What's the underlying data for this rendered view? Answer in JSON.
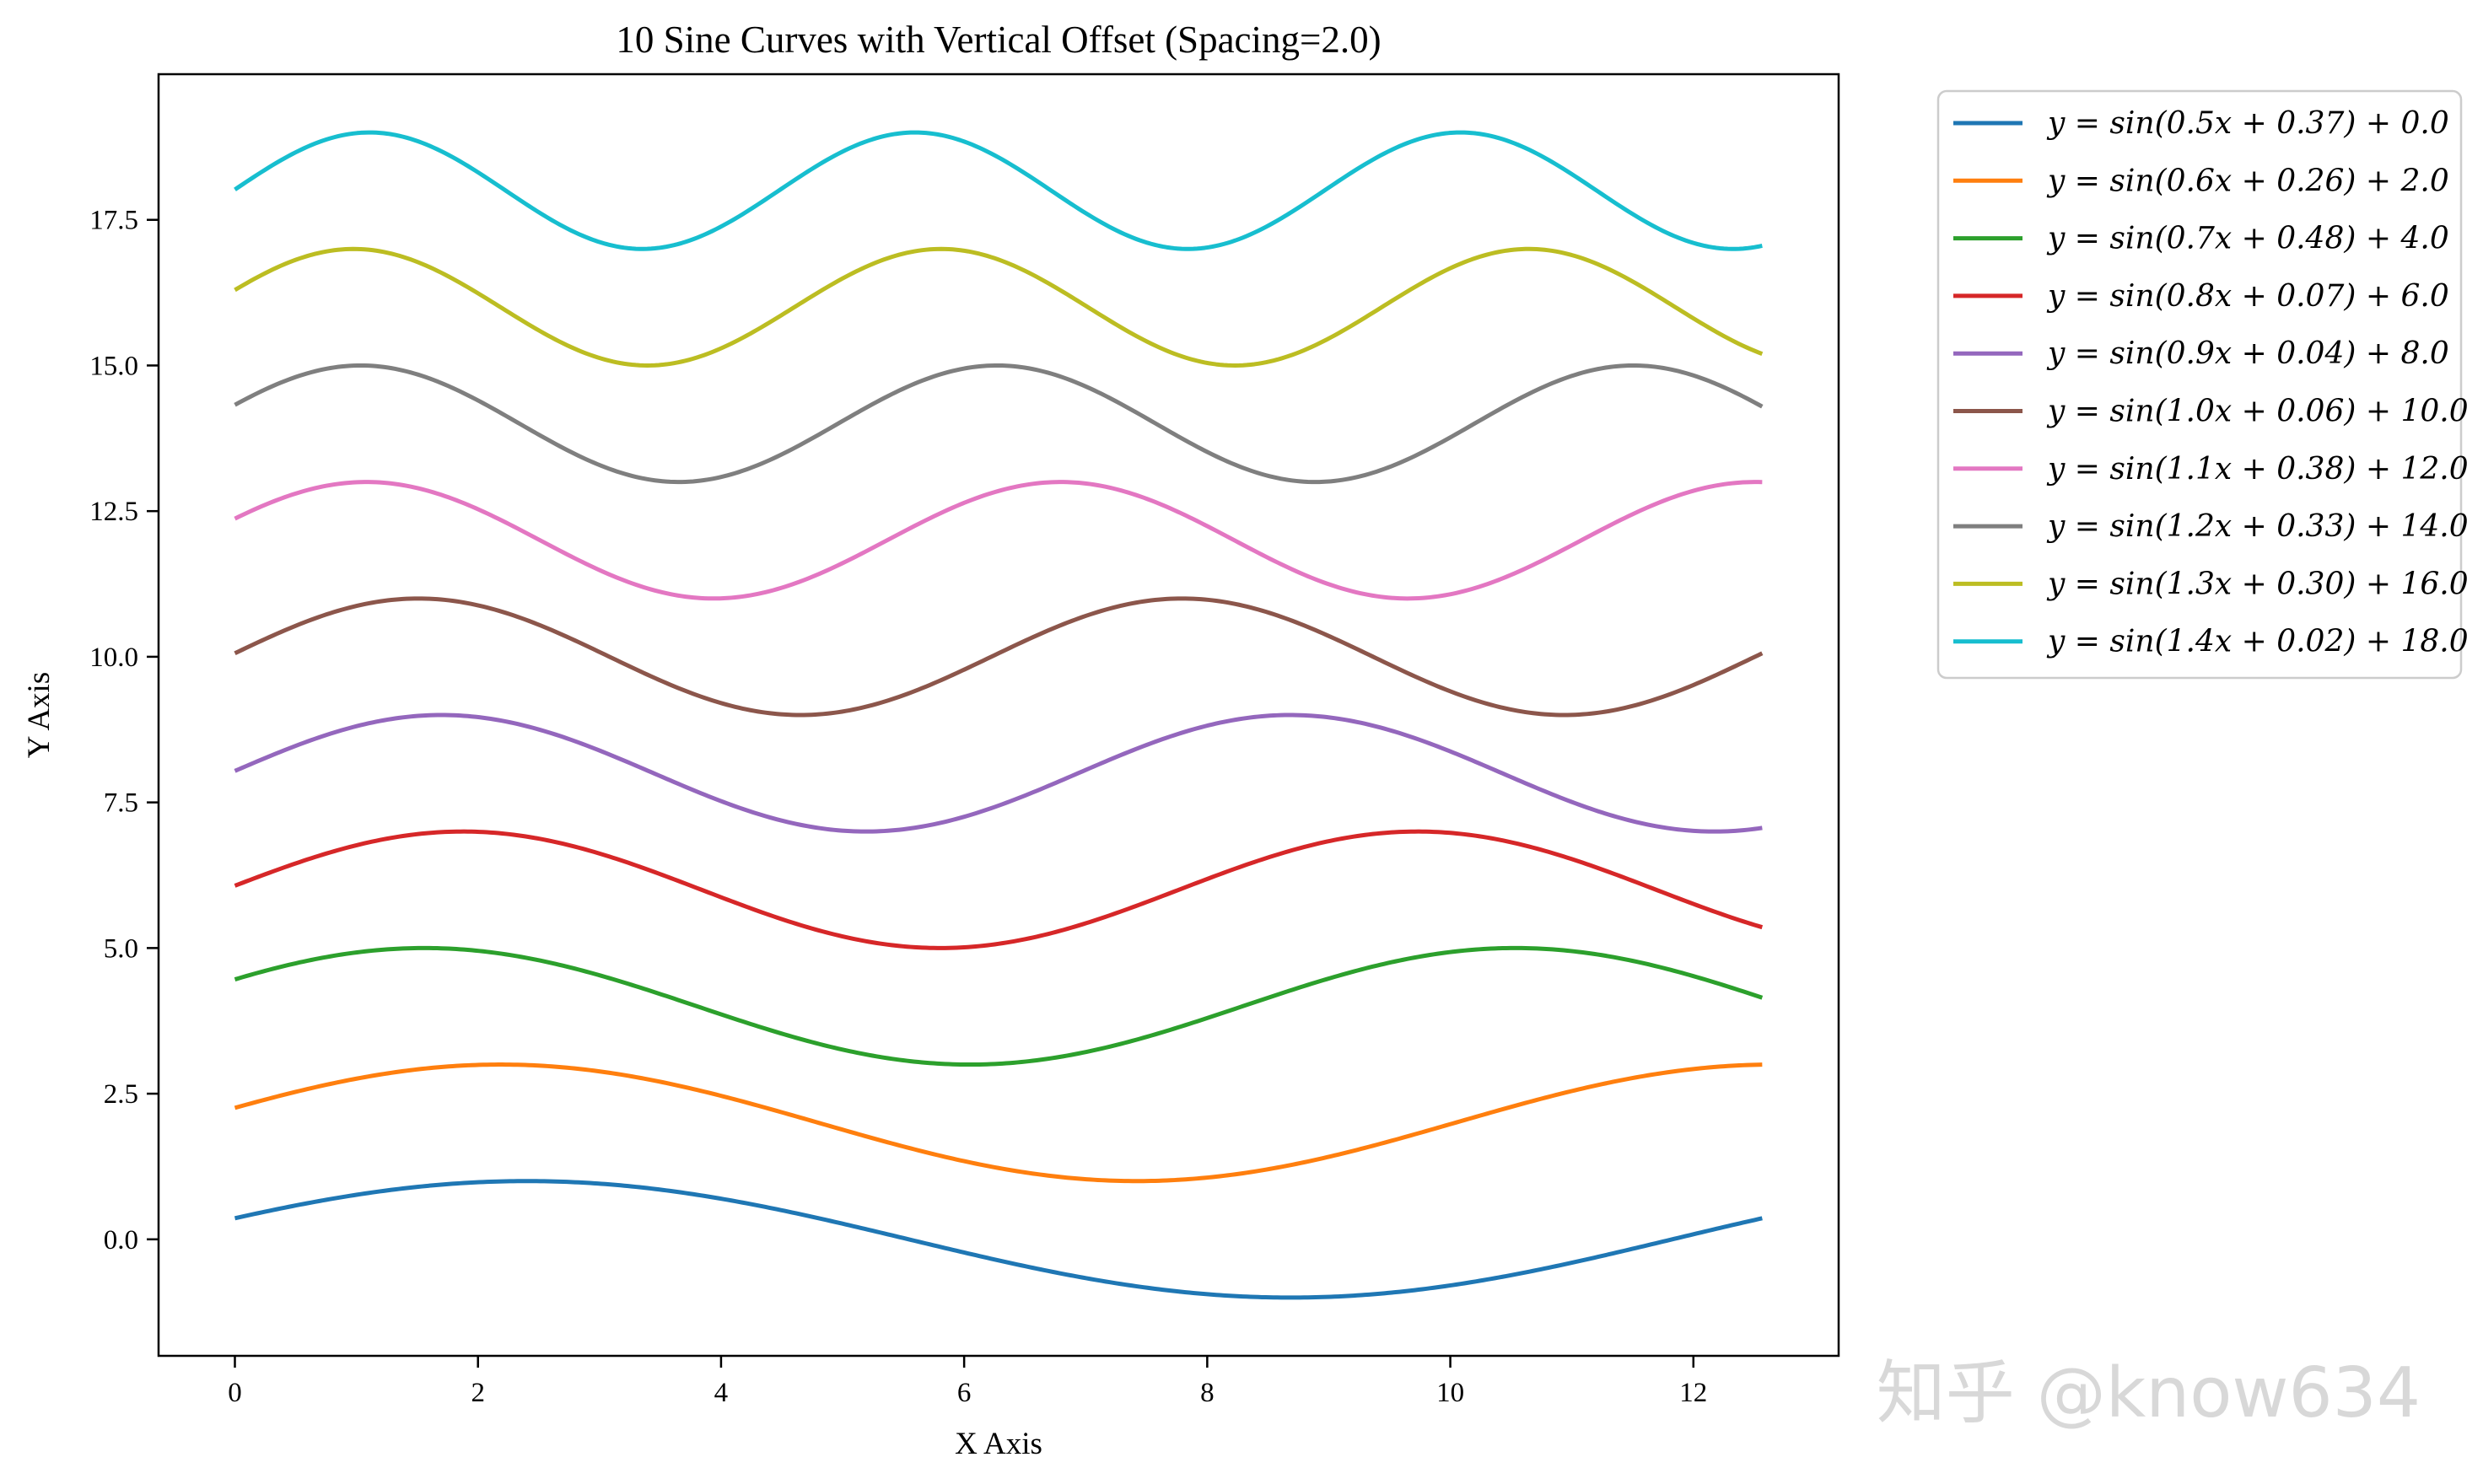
{
  "chart_data": {
    "type": "line",
    "title": "10 Sine Curves with Vertical Offset (Spacing=2.0)",
    "xlabel": "X Axis",
    "ylabel": "Y Axis",
    "xlim": [
      -0.628,
      13.195
    ],
    "ylim": [
      -2.0,
      20.0
    ],
    "x_range": [
      0,
      12.566
    ],
    "xticks": [
      0,
      2,
      4,
      6,
      8,
      10,
      12
    ],
    "xtick_labels": [
      "0",
      "2",
      "4",
      "6",
      "8",
      "10",
      "12"
    ],
    "yticks": [
      0.0,
      2.5,
      5.0,
      7.5,
      10.0,
      12.5,
      15.0,
      17.5
    ],
    "ytick_labels": [
      "0.0",
      "2.5",
      "5.0",
      "7.5",
      "10.0",
      "12.5",
      "15.0",
      "17.5"
    ],
    "grid": false,
    "legend_position": "outside-top-right",
    "series": [
      {
        "name": "y = sin(0.5x + 0.37) + 0.0",
        "freq": 0.5,
        "phase": 0.37,
        "offset": 0.0,
        "color": "#1f77b4"
      },
      {
        "name": "y = sin(0.6x + 0.26) + 2.0",
        "freq": 0.6,
        "phase": 0.26,
        "offset": 2.0,
        "color": "#ff7f0e"
      },
      {
        "name": "y = sin(0.7x + 0.48) + 4.0",
        "freq": 0.7,
        "phase": 0.48,
        "offset": 4.0,
        "color": "#2ca02c"
      },
      {
        "name": "y = sin(0.8x + 0.07) + 6.0",
        "freq": 0.8,
        "phase": 0.07,
        "offset": 6.0,
        "color": "#d62728"
      },
      {
        "name": "y = sin(0.9x + 0.04) + 8.0",
        "freq": 0.9,
        "phase": 0.04,
        "offset": 8.0,
        "color": "#9467bd"
      },
      {
        "name": "y = sin(1.0x + 0.06) + 10.0",
        "freq": 1.0,
        "phase": 0.06,
        "offset": 10.0,
        "color": "#8c564b"
      },
      {
        "name": "y = sin(1.1x + 0.38) + 12.0",
        "freq": 1.1,
        "phase": 0.38,
        "offset": 12.0,
        "color": "#e377c2"
      },
      {
        "name": "y = sin(1.2x + 0.33) + 14.0",
        "freq": 1.2,
        "phase": 0.33,
        "offset": 14.0,
        "color": "#7f7f7f"
      },
      {
        "name": "y = sin(1.3x + 0.30) + 16.0",
        "freq": 1.3,
        "phase": 0.3,
        "offset": 16.0,
        "color": "#bcbd22"
      },
      {
        "name": "y = sin(1.4x + 0.02) + 18.0",
        "freq": 1.4,
        "phase": 0.02,
        "offset": 18.0,
        "color": "#17becf"
      }
    ]
  },
  "watermark": "知乎 @know634"
}
